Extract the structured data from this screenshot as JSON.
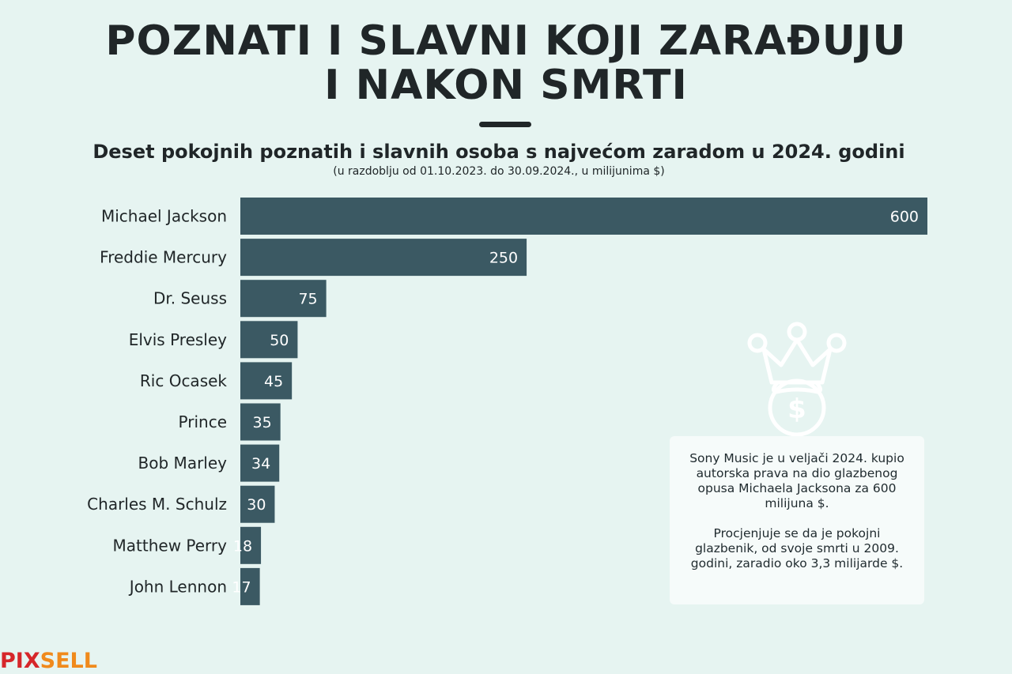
{
  "header": {
    "title_line1": "POZNATI I SLAVNI KOJI ZARAĐUJU",
    "title_line2": "I NAKON SMRTI",
    "subtitle": "Deset pokojnih poznatih i slavnih osoba s najvećom zaradom u 2024. godini",
    "note": "(u razdoblju od 01.10.2023. do 30.09.2024., u milijunima $)"
  },
  "chart_data": {
    "type": "bar",
    "orientation": "horizontal",
    "categories": [
      "Michael Jackson",
      "Freddie Mercury",
      "Dr. Seuss",
      "Elvis Presley",
      "Ric Ocasek",
      "Prince",
      "Bob Marley",
      "Charles M. Schulz",
      "Matthew Perry",
      "John Lennon"
    ],
    "values": [
      600,
      250,
      75,
      50,
      45,
      35,
      34,
      30,
      18,
      17
    ],
    "data_labels": [
      "600",
      "250",
      "75",
      "50",
      "45",
      "35",
      "34",
      "30",
      "18",
      "17"
    ],
    "xlim": [
      0,
      600
    ],
    "grid": false,
    "bar_color": "#3b5963",
    "label_color": "#ffffff"
  },
  "infobox": {
    "paragraph1": "Sony Music je u veljači 2024. kupio autorska prava na dio glazbenog opusa Michaela Jacksona za 600 milijuna $.",
    "paragraph2": "Procjenjuje se da je pokojni glazbenik, od svoje smrti u 2009. godini, zaradio oko 3,3 milijarde $."
  },
  "icon": {
    "name": "crowned-money-bag-icon",
    "glyph": "$"
  },
  "logo": {
    "part1": "PIX",
    "part2": "SELL",
    "color1": "#d6262a",
    "color2": "#f08a1c"
  },
  "colors": {
    "background": "#e6f4f1",
    "bar": "#3b5963",
    "text": "#202628"
  }
}
